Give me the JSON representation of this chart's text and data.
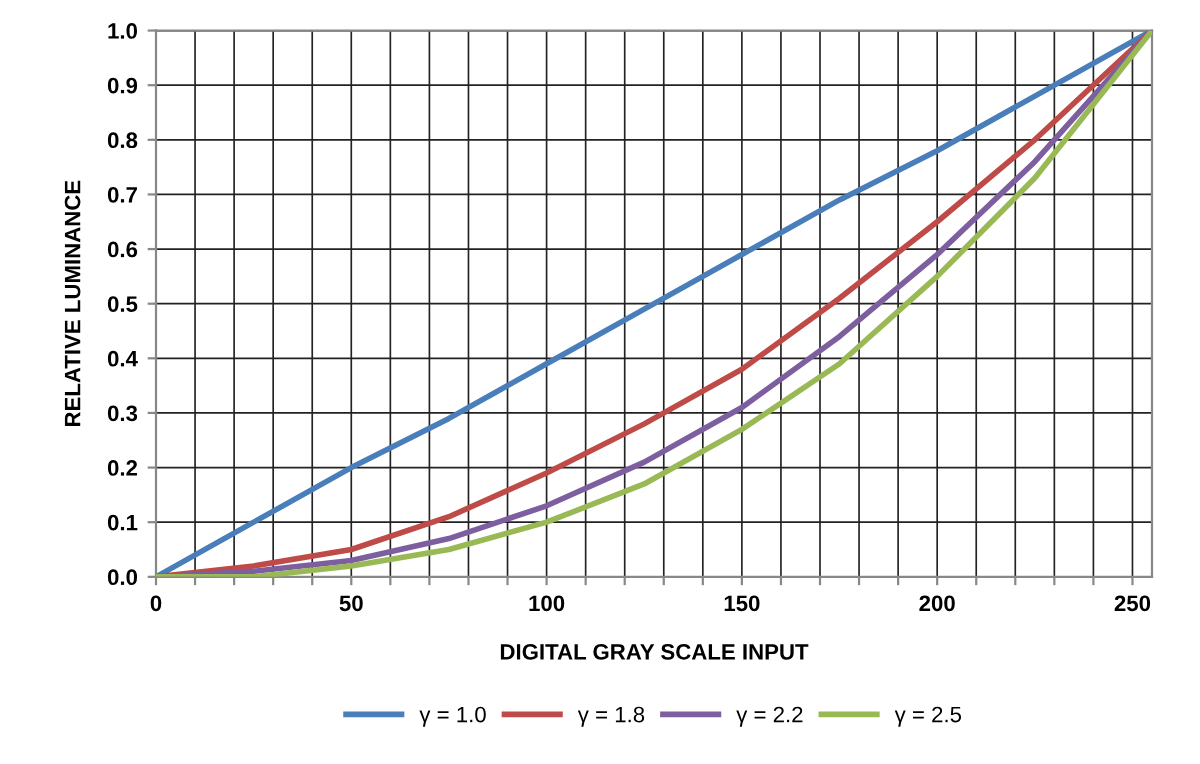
{
  "chart_data": {
    "type": "line",
    "xlabel": "DIGITAL GRAY SCALE INPUT",
    "ylabel": "RELATIVE LUMINANCE",
    "x": [
      0,
      25,
      50,
      75,
      100,
      125,
      150,
      175,
      200,
      225,
      255
    ],
    "series": [
      {
        "name": "γ = 1.0",
        "color": "#4a7ebb",
        "values": [
          0,
          0.1,
          0.2,
          0.29,
          0.39,
          0.49,
          0.59,
          0.69,
          0.78,
          0.88,
          1.0
        ]
      },
      {
        "name": "γ = 1.8",
        "color": "#be4b48",
        "values": [
          0,
          0.02,
          0.05,
          0.11,
          0.19,
          0.28,
          0.38,
          0.51,
          0.65,
          0.8,
          1.0
        ]
      },
      {
        "name": "γ = 2.2",
        "color": "#7d5fa0",
        "values": [
          0,
          0.01,
          0.03,
          0.07,
          0.13,
          0.21,
          0.31,
          0.44,
          0.59,
          0.76,
          1.0
        ]
      },
      {
        "name": "γ = 2.5",
        "color": "#98b954",
        "values": [
          0,
          0,
          0.02,
          0.05,
          0.1,
          0.17,
          0.27,
          0.39,
          0.55,
          0.73,
          1.0
        ]
      }
    ],
    "xlim": [
      0,
      255
    ],
    "ylim": [
      0,
      1.0
    ],
    "xticks": [
      0,
      {
        "value": 10,
        "label": null
      },
      {
        "value": 20,
        "label": null
      },
      {
        "value": 30,
        "label": null
      },
      {
        "value": 40,
        "label": null
      },
      50,
      {
        "value": 60,
        "label": null
      },
      {
        "value": 70,
        "label": null
      },
      {
        "value": 80,
        "label": null
      },
      {
        "value": 90,
        "label": null
      },
      100,
      {
        "value": 110,
        "label": null
      },
      {
        "value": 120,
        "label": null
      },
      {
        "value": 130,
        "label": null
      },
      {
        "value": 140,
        "label": null
      },
      150,
      {
        "value": 160,
        "label": null
      },
      {
        "value": 170,
        "label": null
      },
      {
        "value": 180,
        "label": null
      },
      {
        "value": 190,
        "label": null
      },
      200,
      {
        "value": 210,
        "label": null
      },
      {
        "value": 220,
        "label": null
      },
      {
        "value": 230,
        "label": null
      },
      {
        "value": 240,
        "label": null
      },
      250
    ],
    "yticks": [
      {
        "value": 0,
        "label": "0.0"
      },
      {
        "value": 0.1,
        "label": "0.1"
      },
      {
        "value": 0.2,
        "label": "0.2"
      },
      {
        "value": 0.3,
        "label": "0.3"
      },
      {
        "value": 0.4,
        "label": "0.4"
      },
      {
        "value": 0.5,
        "label": "0.5"
      },
      {
        "value": 0.6,
        "label": "0.6"
      },
      {
        "value": 0.7,
        "label": "0.7"
      },
      {
        "value": 0.8,
        "label": "0.8"
      },
      {
        "value": 0.9,
        "label": "0.9"
      },
      {
        "value": 1.0,
        "label": "1.0"
      }
    ],
    "grid": true,
    "legend": "bottom",
    "marker": "none",
    "line_style": "solid"
  }
}
